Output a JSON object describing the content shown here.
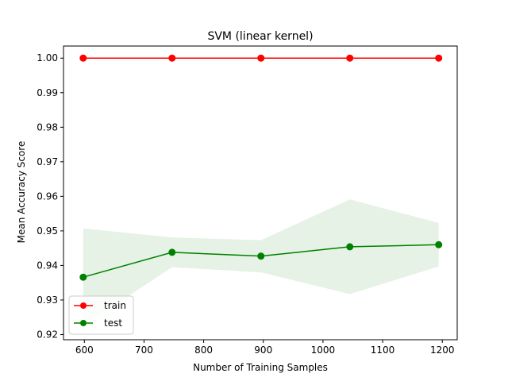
{
  "chart_data": {
    "type": "line",
    "title": "SVM (linear kernel)",
    "xlabel": "Number of Training Samples",
    "ylabel": "Mean Accuracy Score",
    "xlim": [
      565,
      1225
    ],
    "ylim": [
      0.9185,
      1.0035
    ],
    "x_ticks": [
      600,
      700,
      800,
      900,
      1000,
      1100,
      1200
    ],
    "x_tick_labels": [
      "600",
      "700",
      "800",
      "900",
      "1000",
      "1100",
      "1200"
    ],
    "y_ticks": [
      0.92,
      0.93,
      0.94,
      0.95,
      0.96,
      0.97,
      0.98,
      0.99,
      1.0
    ],
    "y_tick_labels": [
      "0.92",
      "0.93",
      "0.94",
      "0.95",
      "0.96",
      "0.97",
      "0.98",
      "0.99",
      "1.00"
    ],
    "x": [
      598,
      747,
      896,
      1045,
      1194
    ],
    "series": [
      {
        "name": "train",
        "color": "#ff0000",
        "values": [
          1.0,
          1.0,
          1.0,
          1.0,
          1.0
        ],
        "band_lower": [
          1.0,
          1.0,
          1.0,
          1.0,
          1.0
        ],
        "band_upper": [
          1.0,
          1.0,
          1.0,
          1.0,
          1.0
        ]
      },
      {
        "name": "test",
        "color": "#008000",
        "values": [
          0.9366,
          0.9438,
          0.9427,
          0.9454,
          0.946
        ],
        "band_lower": [
          0.9225,
          0.9395,
          0.938,
          0.9317,
          0.9397
        ],
        "band_upper": [
          0.9507,
          0.9481,
          0.9473,
          0.9591,
          0.9523
        ]
      }
    ],
    "legend_position": "lower-left",
    "grid": false
  }
}
